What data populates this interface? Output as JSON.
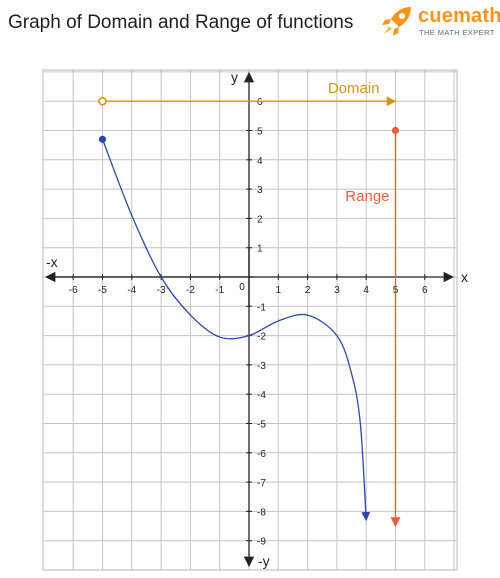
{
  "header": {
    "title": "Graph of Domain and Range of functions",
    "brand": "cuemath",
    "tagline": "THE MATH EXPERT",
    "brand_color": "#f7941d"
  },
  "chart_data": {
    "type": "line",
    "title": "Graph of Domain and Range of functions",
    "xlim": [
      -7,
      7
    ],
    "ylim": [
      -10,
      7
    ],
    "x_ticks": [
      -6,
      -5,
      -4,
      -3,
      -2,
      -1,
      0,
      1,
      2,
      3,
      4,
      5,
      6
    ],
    "y_ticks": [
      -9,
      -8,
      -7,
      -6,
      -5,
      -4,
      -3,
      -2,
      -1,
      1,
      2,
      3,
      4,
      5,
      6
    ],
    "axis_labels": {
      "x_pos": "x",
      "x_neg": "-x",
      "y_pos": "y",
      "y_neg": "-y"
    },
    "grid": true,
    "series": [
      {
        "color": "#2b4aa6",
        "start_point": [
          -5,
          4.7
        ],
        "end_arrow": "down",
        "x": [
          -5,
          -4,
          -3,
          -2,
          -1,
          0,
          1,
          2,
          3,
          3.5,
          3.8,
          4
        ],
        "y": [
          4.7,
          2.1,
          0,
          -1.3,
          -2.05,
          -2.0,
          -1.5,
          -1.3,
          -2.0,
          -3.3,
          -5.0,
          -8.3
        ]
      }
    ],
    "annotations": [
      {
        "label": "Domain",
        "color": "#d4960f",
        "from": [
          -5,
          6
        ],
        "to": [
          5,
          6
        ],
        "start_marker": "open-circle",
        "end_marker": "arrow"
      },
      {
        "label": "Range",
        "color": "#ef5a3c",
        "from": [
          5,
          5
        ],
        "to": [
          5,
          -8.5
        ],
        "start_marker": "filled-circle",
        "end_marker": "arrow"
      }
    ]
  }
}
